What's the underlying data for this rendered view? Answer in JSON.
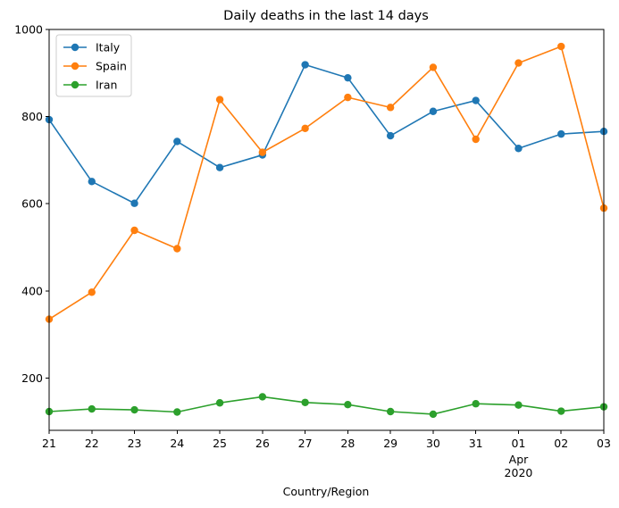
{
  "chart_data": {
    "type": "line",
    "title": "Daily deaths in the last 14 days",
    "xlabel": "Country/Region",
    "ylabel": "",
    "categories": [
      "21",
      "22",
      "23",
      "24",
      "25",
      "26",
      "27",
      "28",
      "29",
      "30",
      "31",
      "01",
      "02",
      "03"
    ],
    "x_dates": [
      "2020-03-21",
      "2020-03-22",
      "2020-03-23",
      "2020-03-24",
      "2020-03-25",
      "2020-03-26",
      "2020-03-27",
      "2020-03-28",
      "2020-03-29",
      "2020-03-30",
      "2020-03-31",
      "2020-04-01",
      "2020-04-02",
      "2020-04-03"
    ],
    "x_secondary_label": {
      "category": "01",
      "lines": [
        "Apr",
        "2020"
      ]
    },
    "ylim": [
      80,
      1000
    ],
    "yticks": [
      200,
      400,
      600,
      800,
      1000
    ],
    "grid": false,
    "legend_position": "top-left",
    "series": [
      {
        "name": "Italy",
        "color": "#1f77b4",
        "values": [
          793,
          651,
          601,
          743,
          683,
          712,
          919,
          889,
          756,
          812,
          837,
          727,
          760,
          766
        ]
      },
      {
        "name": "Spain",
        "color": "#ff7f0e",
        "values": [
          335,
          397,
          539,
          497,
          839,
          718,
          773,
          844,
          821,
          913,
          748,
          923,
          961,
          590
        ]
      },
      {
        "name": "Iran",
        "color": "#2ca02c",
        "values": [
          123,
          129,
          127,
          122,
          143,
          157,
          144,
          139,
          123,
          117,
          141,
          138,
          124,
          134
        ]
      }
    ]
  }
}
